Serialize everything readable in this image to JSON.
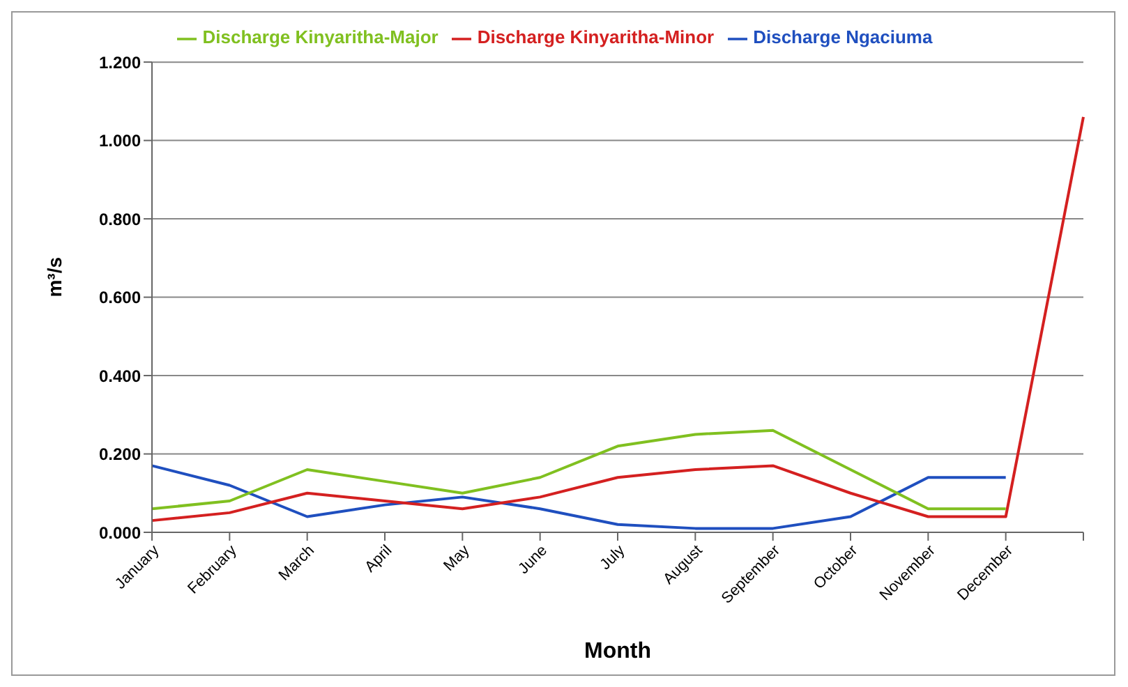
{
  "chart_data": {
    "type": "line",
    "xlabel": "Month",
    "ylabel": "m³/s",
    "categories": [
      "January",
      "February",
      "March",
      "April",
      "May",
      "June",
      "July",
      "August",
      "September",
      "October",
      "November",
      "December",
      null
    ],
    "series": [
      {
        "name": "Discharge Ngaciuma",
        "color": "#1f4fbf",
        "values": [
          0.17,
          0.12,
          0.04,
          0.07,
          0.09,
          0.06,
          0.02,
          0.01,
          0.01,
          0.04,
          0.14,
          0.14,
          null
        ]
      },
      {
        "name": "Discharge Kinyaritha-Minor",
        "color": "#d42020",
        "values": [
          0.03,
          0.05,
          0.1,
          0.08,
          0.06,
          0.09,
          0.14,
          0.16,
          0.17,
          0.1,
          0.04,
          0.04,
          1.06
        ]
      },
      {
        "name": "Discharge Kinyaritha-Major",
        "color": "#80c020",
        "values": [
          0.06,
          0.08,
          0.16,
          0.13,
          0.1,
          0.14,
          0.22,
          0.25,
          0.26,
          0.16,
          0.06,
          0.06,
          null
        ]
      }
    ],
    "ylim": [
      0,
      1.2
    ],
    "yticks": [
      {
        "value": 0,
        "label": "0.000"
      },
      {
        "value": 0.2,
        "label": "0.200"
      },
      {
        "value": 0.4,
        "label": "0.400"
      },
      {
        "value": 0.6,
        "label": "0.600"
      },
      {
        "value": 0.8,
        "label": "0.800"
      },
      {
        "value": 1,
        "label": "1.000"
      },
      {
        "value": 1.2,
        "label": "1.200"
      }
    ],
    "grid": "y",
    "legend": "top",
    "marker": "none",
    "line_style": "solid"
  }
}
